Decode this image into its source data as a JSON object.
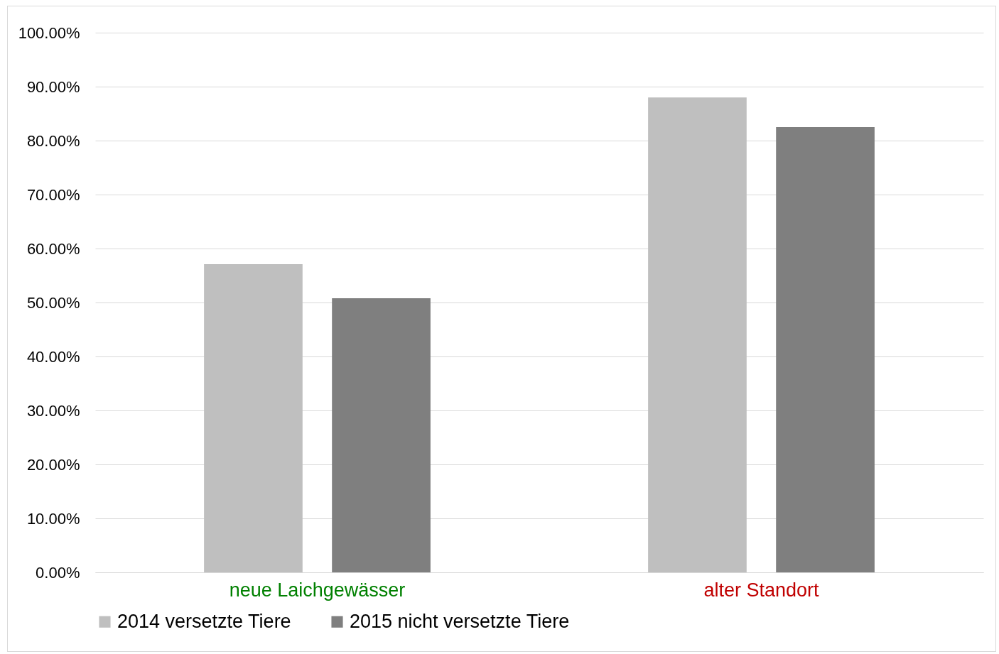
{
  "chart_data": {
    "type": "bar",
    "categories": [
      "neue Laichgewässer",
      "alter Standort"
    ],
    "series": [
      {
        "name": "2014 versetzte Tiere",
        "color": "#bfbfbf",
        "values": [
          57.1,
          88.0
        ]
      },
      {
        "name": "2015 nicht versetzte Tiere",
        "color": "#7f7f7f",
        "values": [
          50.8,
          82.5
        ]
      }
    ],
    "ylim": [
      0,
      100
    ],
    "yticks": [
      {
        "value": 0,
        "label": "0.00%"
      },
      {
        "value": 10,
        "label": "10.00%"
      },
      {
        "value": 20,
        "label": "20.00%"
      },
      {
        "value": 30,
        "label": "30.00%"
      },
      {
        "value": 40,
        "label": "40.00%"
      },
      {
        "value": 50,
        "label": "50.00%"
      },
      {
        "value": 60,
        "label": "60.00%"
      },
      {
        "value": 70,
        "label": "70.00%"
      },
      {
        "value": 80,
        "label": "80.00%"
      },
      {
        "value": 90,
        "label": "90.00%"
      },
      {
        "value": 100,
        "label": "100.00%"
      }
    ],
    "grid": "y",
    "legend": "bottom"
  }
}
